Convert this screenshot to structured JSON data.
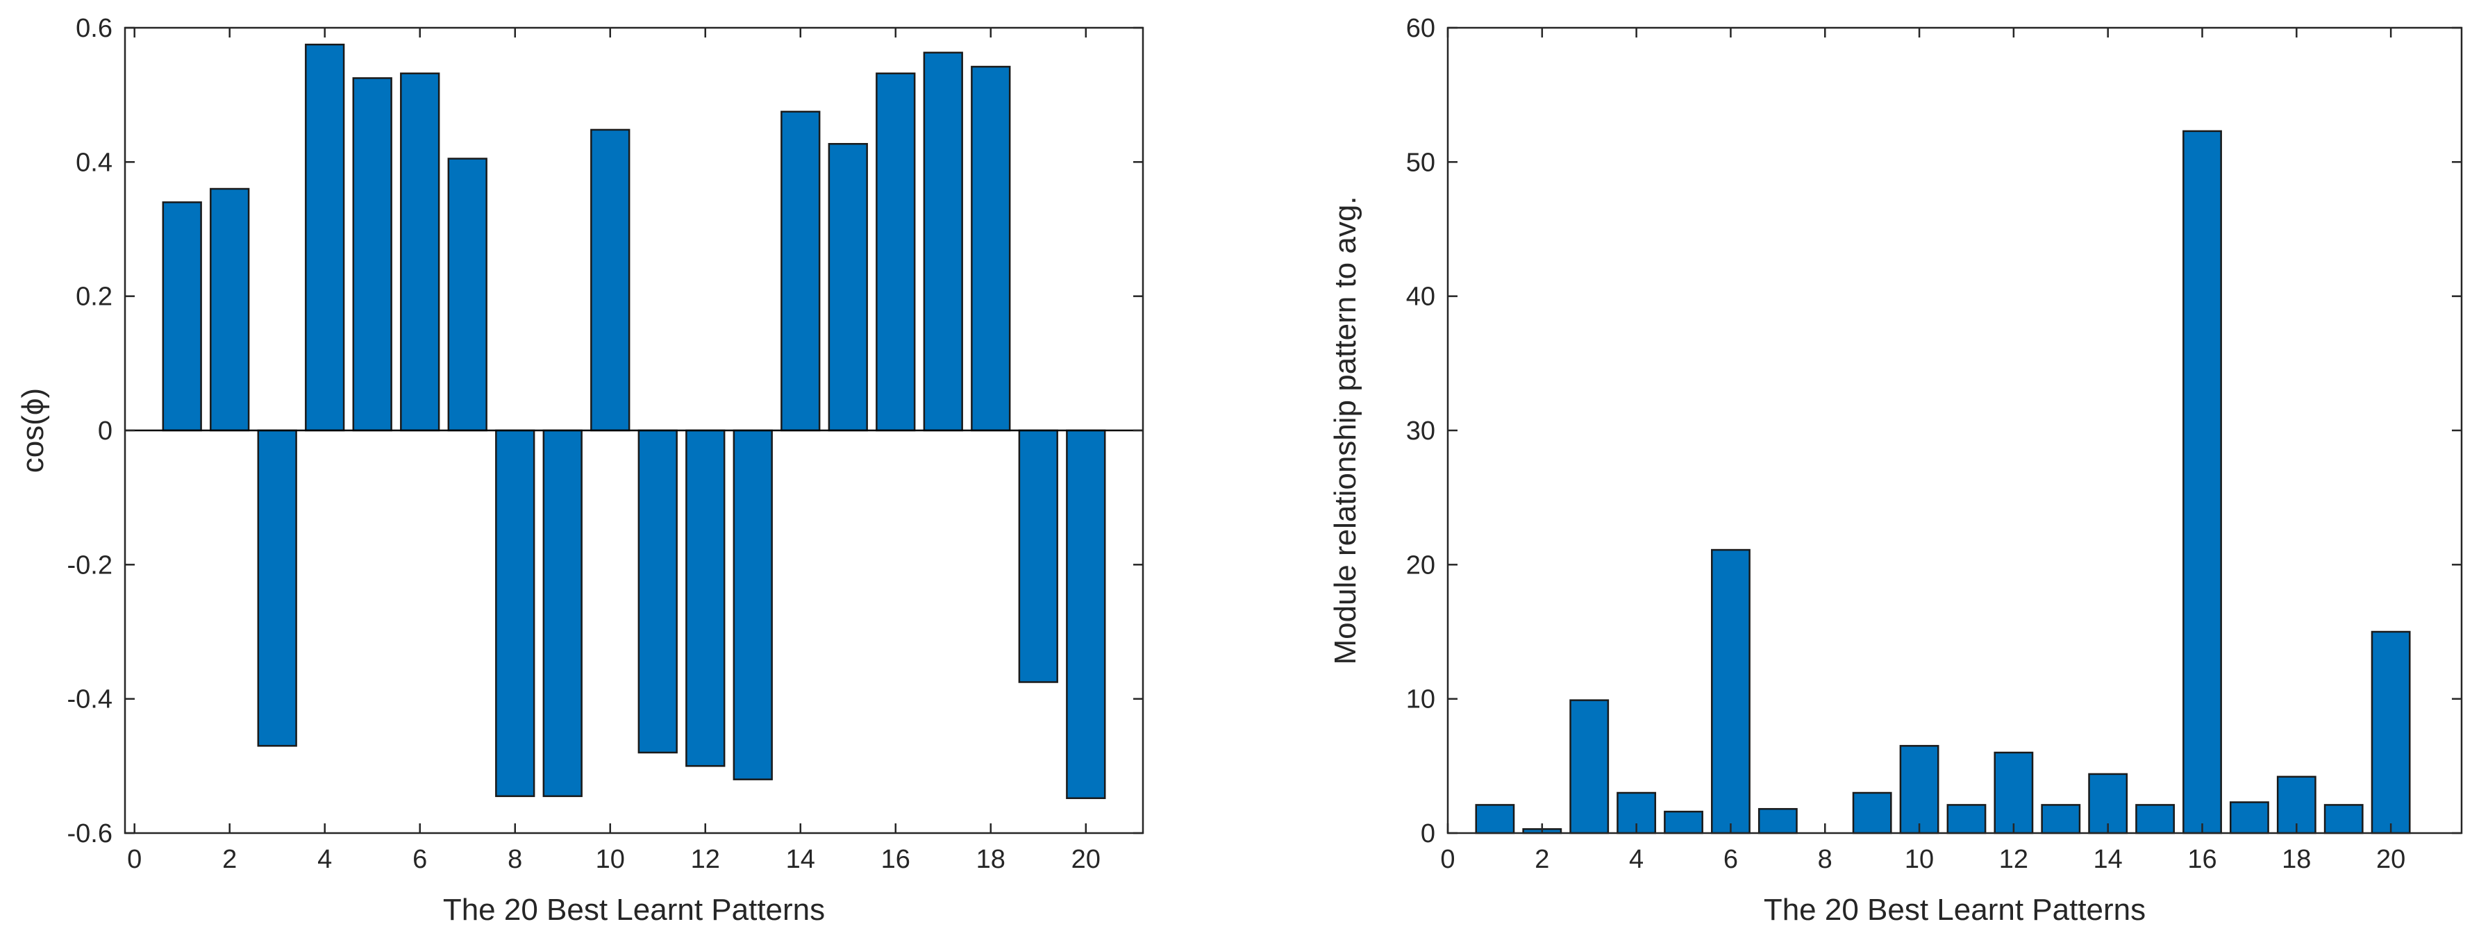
{
  "colors": {
    "bar_fill": "#0072BD",
    "bar_edge": "#1a1a1a",
    "axis": "#262626",
    "background": "#ffffff"
  },
  "chart_data": [
    {
      "type": "bar",
      "title": "",
      "xlabel": "The 20 Best Learnt Patterns",
      "ylabel": "cos(ϕ)",
      "categories": [
        1,
        2,
        3,
        4,
        5,
        6,
        7,
        8,
        9,
        10,
        11,
        12,
        13,
        14,
        15,
        16,
        17,
        18,
        19,
        20
      ],
      "values": [
        0.34,
        0.36,
        -0.47,
        0.575,
        0.525,
        0.532,
        0.405,
        -0.545,
        -0.545,
        0.448,
        -0.48,
        -0.5,
        -0.52,
        0.475,
        0.427,
        0.532,
        0.563,
        0.542,
        -0.375,
        -0.548
      ],
      "xlim": [
        -0.2,
        21.2
      ],
      "ylim": [
        -0.6,
        0.6
      ],
      "xticks": [
        0,
        2,
        4,
        6,
        8,
        10,
        12,
        14,
        16,
        18,
        20
      ],
      "yticks": [
        -0.6,
        -0.4,
        -0.2,
        0,
        0.2,
        0.4,
        0.6
      ],
      "ytick_labels": [
        "-0.6",
        "-0.4",
        "-0.2",
        "0",
        "0.2",
        "0.4",
        "0.6"
      ],
      "grid": false
    },
    {
      "type": "bar",
      "title": "",
      "xlabel": "The 20 Best Learnt Patterns",
      "ylabel": "Module relationship pattern to avg.",
      "categories": [
        1,
        2,
        3,
        4,
        5,
        6,
        7,
        8,
        9,
        10,
        11,
        12,
        13,
        14,
        15,
        16,
        17,
        18,
        19,
        20
      ],
      "values": [
        2.1,
        0.3,
        9.9,
        3.0,
        1.6,
        21.1,
        1.8,
        0.0,
        3.0,
        6.5,
        2.1,
        6.0,
        2.1,
        4.4,
        2.1,
        52.3,
        2.3,
        4.2,
        2.1,
        15.0
      ],
      "xlim": [
        0,
        21.5
      ],
      "ylim": [
        0,
        60
      ],
      "xticks": [
        0,
        2,
        4,
        6,
        8,
        10,
        12,
        14,
        16,
        18,
        20
      ],
      "yticks": [
        0,
        10,
        20,
        30,
        40,
        50,
        60
      ],
      "ytick_labels": [
        "0",
        "10",
        "20",
        "30",
        "40",
        "50",
        "60"
      ],
      "grid": false
    }
  ]
}
